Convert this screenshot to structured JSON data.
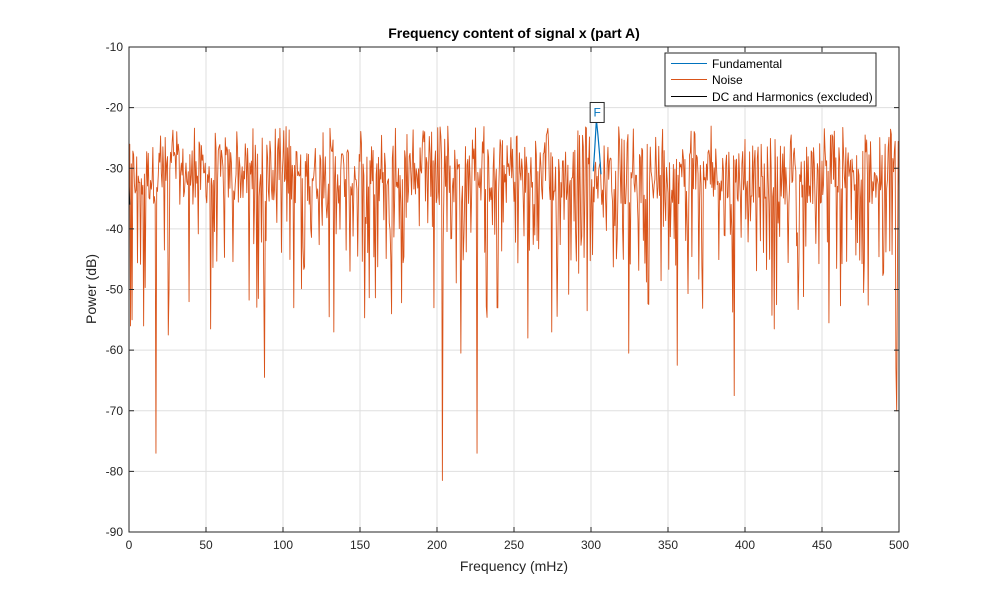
{
  "chart_data": {
    "type": "line",
    "title": "Frequency content of signal x (part A)",
    "xlabel": "Frequency (mHz)",
    "ylabel": "Power (dB)",
    "xlim": [
      0,
      500
    ],
    "ylim": [
      -90,
      -10
    ],
    "xticks": [
      0,
      50,
      100,
      150,
      200,
      250,
      300,
      350,
      400,
      450,
      500
    ],
    "yticks": [
      -90,
      -80,
      -70,
      -60,
      -50,
      -40,
      -30,
      -20,
      -10
    ],
    "grid": true,
    "legend_position": "top-right",
    "series": [
      {
        "name": "Fundamental",
        "color": "#0072bd",
        "x": [
          301.5,
          302.5,
          303.5,
          304.5,
          305.5,
          306.5
        ],
        "y": [
          -30.5,
          -26.5,
          -22.0,
          -24.5,
          -27.5,
          -31.0
        ]
      },
      {
        "name": "Noise",
        "color": "#d95319",
        "spacing_mHz": 0.5,
        "base_level_dB": -31,
        "upper_envelope_dB": -23,
        "notable_dips": [
          {
            "x": 0.8,
            "y": -56
          },
          {
            "x": 2.0,
            "y": -55
          },
          {
            "x": 9.5,
            "y": -56
          },
          {
            "x": 17.5,
            "y": -77
          },
          {
            "x": 25.5,
            "y": -57.5
          },
          {
            "x": 53.0,
            "y": -56.5
          },
          {
            "x": 88.0,
            "y": -64.5
          },
          {
            "x": 107.0,
            "y": -53
          },
          {
            "x": 130.0,
            "y": -54.5
          },
          {
            "x": 133.0,
            "y": -57
          },
          {
            "x": 170.5,
            "y": -54
          },
          {
            "x": 198.0,
            "y": -53
          },
          {
            "x": 203.5,
            "y": -81.5
          },
          {
            "x": 215.5,
            "y": -60.5
          },
          {
            "x": 226.0,
            "y": -77
          },
          {
            "x": 239.0,
            "y": -53
          },
          {
            "x": 259.0,
            "y": -58
          },
          {
            "x": 274.5,
            "y": -57
          },
          {
            "x": 297.5,
            "y": -53.5
          },
          {
            "x": 324.5,
            "y": -60.5
          },
          {
            "x": 356.0,
            "y": -62.5
          },
          {
            "x": 393.0,
            "y": -67.5
          },
          {
            "x": 419.0,
            "y": -56.5
          },
          {
            "x": 420.5,
            "y": -52.5
          },
          {
            "x": 454.5,
            "y": -55.5
          },
          {
            "x": 477.0,
            "y": -50.5
          },
          {
            "x": 498.0,
            "y": -63
          },
          {
            "x": 498.7,
            "y": -70
          }
        ]
      },
      {
        "name": "DC and Harmonics (excluded)",
        "color": "#000000",
        "x": [
          0,
          0.5
        ],
        "y": [
          -33,
          -36
        ]
      }
    ],
    "annotations": [
      {
        "text": "F",
        "x": 304.0,
        "y": -20.8,
        "color": "#0072bd"
      }
    ]
  }
}
